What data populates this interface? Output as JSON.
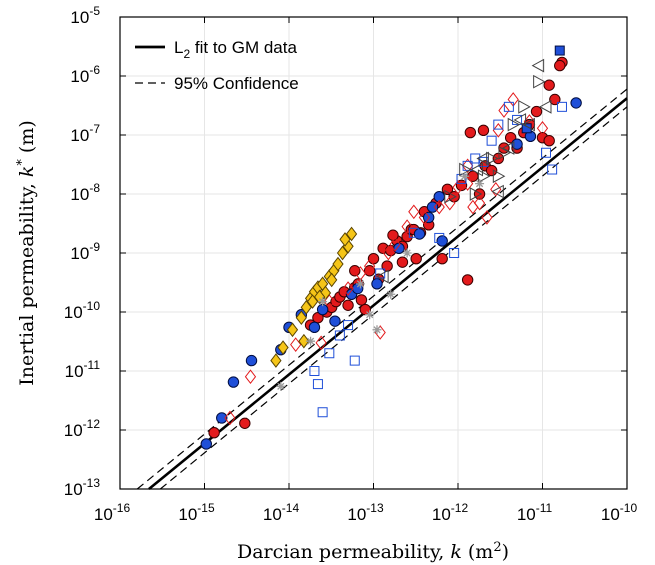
{
  "chart_data": {
    "type": "scatter",
    "xscale": "log",
    "yscale": "log",
    "xlim": [
      1e-16,
      1e-10
    ],
    "ylim": [
      1e-13,
      1e-05
    ],
    "grid": true,
    "legend_position": "top-left",
    "xlabel": "Darcian permeability, k (m²)",
    "ylabel": "Inertial permeability, k* (m)",
    "x_ticks": [
      {
        "value": 1e-16,
        "base": "10",
        "exp": "-16"
      },
      {
        "value": 1e-15,
        "base": "10",
        "exp": "-15"
      },
      {
        "value": 1e-14,
        "base": "10",
        "exp": "-14"
      },
      {
        "value": 1e-13,
        "base": "10",
        "exp": "-13"
      },
      {
        "value": 1e-12,
        "base": "10",
        "exp": "-12"
      },
      {
        "value": 1e-11,
        "base": "10",
        "exp": "-11"
      },
      {
        "value": 1e-10,
        "base": "10",
        "exp": "-10"
      }
    ],
    "y_ticks": [
      {
        "value": 1e-13,
        "base": "10",
        "exp": "-13"
      },
      {
        "value": 1e-12,
        "base": "10",
        "exp": "-12"
      },
      {
        "value": 1e-11,
        "base": "10",
        "exp": "-11"
      },
      {
        "value": 1e-10,
        "base": "10",
        "exp": "-10"
      },
      {
        "value": 1e-09,
        "base": "10",
        "exp": "-9"
      },
      {
        "value": 1e-08,
        "base": "10",
        "exp": "-8"
      },
      {
        "value": 1e-07,
        "base": "10",
        "exp": "-7"
      },
      {
        "value": 1e-06,
        "base": "10",
        "exp": "-6"
      },
      {
        "value": 1e-05,
        "base": "10",
        "exp": "-5"
      }
    ],
    "legend": [
      {
        "label_main": "L",
        "label_sub": "2",
        "label_rest": " fit to GM data",
        "style": "solid"
      },
      {
        "label_main": "95% Confidence",
        "label_sub": "",
        "label_rest": "",
        "style": "dashed"
      }
    ],
    "fit_lines": [
      {
        "style": "solid",
        "x": [
          2.2e-16,
          1e-10
        ],
        "y": [
          1e-13,
          4.2e-07
        ]
      },
      {
        "style": "dashed",
        "x": [
          1.6e-16,
          1e-10
        ],
        "y": [
          1e-13,
          6e-07
        ]
      },
      {
        "style": "dashed",
        "x": [
          3e-16,
          1e-10
        ],
        "y": [
          1e-13,
          3e-07
        ]
      }
    ],
    "series": [
      {
        "marker": "circle",
        "fill": "#e31a1c",
        "stroke": "#3a0000",
        "points": [
          [
            1.3e-15,
            9e-13
          ],
          [
            3e-15,
            1.3e-12
          ],
          [
            1.8e-14,
            6e-11
          ],
          [
            2.2e-14,
            8e-11
          ],
          [
            2.8e-14,
            1e-10
          ],
          [
            3.2e-14,
            1.2e-10
          ],
          [
            3.6e-14,
            1.5e-10
          ],
          [
            4e-14,
            1.8e-10
          ],
          [
            4.5e-14,
            2.2e-10
          ],
          [
            5e-14,
            1.3e-10
          ],
          [
            5.5e-14,
            2e-10
          ],
          [
            6e-14,
            2.6e-10
          ],
          [
            6.6e-14,
            3e-10
          ],
          [
            7.2e-14,
            1.6e-10
          ],
          [
            8e-14,
            1.1e-10
          ],
          [
            9e-14,
            5e-10
          ],
          [
            1e-13,
            8e-10
          ],
          [
            1.15e-13,
            3.6e-10
          ],
          [
            1.3e-13,
            1.2e-09
          ],
          [
            1.45e-13,
            6e-10
          ],
          [
            1.6e-13,
            1.1e-09
          ],
          [
            1.9e-13,
            1.6e-09
          ],
          [
            2.2e-13,
            1.3e-09
          ],
          [
            2.5e-13,
            1.9e-09
          ],
          [
            2.8e-13,
            2.5e-09
          ],
          [
            3.2e-13,
            8e-10
          ],
          [
            3.6e-13,
            2.2e-09
          ],
          [
            4e-13,
            5e-09
          ],
          [
            4.5e-13,
            3e-09
          ],
          [
            5.5e-13,
            7e-09
          ],
          [
            6.5e-13,
            8e-10
          ],
          [
            7.5e-13,
            1.2e-08
          ],
          [
            9e-13,
            9e-09
          ],
          [
            1.1e-12,
            1.4e-08
          ],
          [
            1.3e-12,
            3.5e-10
          ],
          [
            1.5e-12,
            2e-08
          ],
          [
            1.8e-12,
            1e-08
          ],
          [
            2.1e-12,
            3e-08
          ],
          [
            2.5e-12,
            2.5e-08
          ],
          [
            3e-12,
            4e-08
          ],
          [
            3.5e-12,
            6e-08
          ],
          [
            4.2e-12,
            9e-08
          ],
          [
            5e-12,
            6e-08
          ],
          [
            6e-12,
            1.1e-07
          ],
          [
            7e-12,
            1.5e-07
          ],
          [
            8.5e-12,
            2.5e-07
          ],
          [
            1e-11,
            9e-08
          ],
          [
            1.2e-11,
            7e-07
          ],
          [
            1.4e-11,
            4e-07
          ],
          [
            1.7e-11,
            1.7e-06
          ],
          [
            1.6e-11,
            1.5e-06
          ],
          [
            1.2e-11,
            8e-08
          ],
          [
            2e-12,
            1.2e-07
          ],
          [
            1.4e-12,
            1.1e-07
          ],
          [
            2.2e-13,
            7e-10
          ],
          [
            1.7e-13,
            2e-09
          ],
          [
            6e-14,
            5e-10
          ],
          [
            3e-13,
            2.5e-09
          ]
        ]
      },
      {
        "marker": "circle",
        "fill": "#1f4fd8",
        "stroke": "#000d40",
        "points": [
          [
            1.05e-15,
            5.8e-13
          ],
          [
            1.6e-15,
            1.6e-12
          ],
          [
            2.2e-15,
            6.5e-12
          ],
          [
            3.6e-15,
            1.5e-11
          ],
          [
            8e-15,
            2.3e-11
          ],
          [
            1e-14,
            5.5e-11
          ],
          [
            1.4e-14,
            9e-11
          ],
          [
            2e-14,
            5.5e-11
          ],
          [
            2.5e-14,
            1.1e-10
          ],
          [
            3.5e-14,
            7e-11
          ],
          [
            5.5e-14,
            2e-10
          ],
          [
            6.5e-14,
            2.5e-10
          ],
          [
            1.1e-13,
            3e-10
          ],
          [
            2e-13,
            1.2e-09
          ],
          [
            3.5e-13,
            2.1e-09
          ],
          [
            4.5e-13,
            4e-09
          ],
          [
            5e-13,
            6e-09
          ],
          [
            6e-13,
            9e-09
          ],
          [
            5e-12,
            7e-08
          ],
          [
            7.2e-12,
            9.5e-08
          ],
          [
            2.5e-11,
            3.5e-07
          ],
          [
            6.5e-13,
            1.6e-09
          ]
        ]
      },
      {
        "marker": "diamond",
        "fill": "none",
        "stroke": "#e31a1c",
        "points": [
          [
            2e-15,
            1.6e-12
          ],
          [
            3.5e-15,
            8e-12
          ],
          [
            1.2e-14,
            2.8e-11
          ],
          [
            2.4e-14,
            3e-11
          ],
          [
            3e-14,
            1.5e-10
          ],
          [
            5e-14,
            2.5e-10
          ],
          [
            7e-14,
            4.5e-10
          ],
          [
            9e-14,
            6e-10
          ],
          [
            1.2e-13,
            4.5e-11
          ],
          [
            1.5e-13,
            1e-09
          ],
          [
            1.8e-13,
            1.4e-09
          ],
          [
            2.5e-13,
            2.8e-09
          ],
          [
            3e-13,
            5e-09
          ],
          [
            4e-13,
            4e-09
          ],
          [
            6e-13,
            6e-09
          ],
          [
            8e-13,
            7e-09
          ],
          [
            1e-12,
            1.3e-08
          ],
          [
            1.3e-12,
            1.5e-08
          ],
          [
            1.5e-12,
            6e-09
          ],
          [
            1.8e-12,
            7e-09
          ],
          [
            2.2e-12,
            4e-09
          ],
          [
            2.8e-12,
            1.2e-08
          ],
          [
            3e-12,
            1.2e-07
          ],
          [
            3.5e-12,
            2.6e-07
          ],
          [
            4.5e-12,
            4e-07
          ],
          [
            7e-12,
            1.7e-07
          ],
          [
            1e-11,
            1.3e-07
          ],
          [
            1.3e-12,
            3e-08
          ]
        ]
      },
      {
        "marker": "diamond",
        "fill": "#f5c518",
        "stroke": "#5a4500",
        "points": [
          [
            7e-15,
            1.5e-11
          ],
          [
            8.5e-15,
            2.5e-11
          ],
          [
            1.1e-14,
            5e-11
          ],
          [
            1.4e-14,
            8e-11
          ],
          [
            1.6e-14,
            1.2e-10
          ],
          [
            1.8e-14,
            1.7e-10
          ],
          [
            2e-14,
            2.2e-10
          ],
          [
            2.2e-14,
            2.6e-10
          ],
          [
            2.5e-14,
            3e-10
          ],
          [
            2.7e-14,
            2.1e-10
          ],
          [
            3e-14,
            4e-10
          ],
          [
            3.4e-14,
            5e-10
          ],
          [
            3.8e-14,
            6.5e-10
          ],
          [
            4.3e-14,
            1e-09
          ],
          [
            5e-14,
            1.3e-09
          ],
          [
            5.5e-14,
            2.1e-09
          ],
          [
            4.6e-14,
            1.7e-09
          ],
          [
            1.5e-14,
            3.2e-11
          ],
          [
            1.9e-14,
            1.5e-10
          ],
          [
            2.3e-14,
            1.8e-10
          ],
          [
            3.2e-14,
            3.5e-10
          ]
        ]
      },
      {
        "marker": "square",
        "fill": "none",
        "stroke": "#1f4fd8",
        "points": [
          [
            2e-14,
            1e-11
          ],
          [
            2.2e-14,
            6e-12
          ],
          [
            2.5e-14,
            2e-12
          ],
          [
            3e-14,
            2e-11
          ],
          [
            4e-14,
            4e-11
          ],
          [
            5e-14,
            6e-11
          ],
          [
            6e-14,
            1.5e-11
          ],
          [
            1.2e-13,
            4.5e-10
          ],
          [
            3e-13,
            2.2e-09
          ],
          [
            6e-13,
            1.8e-09
          ],
          [
            9e-13,
            1e-09
          ],
          [
            1.1e-12,
            1.8e-08
          ],
          [
            1.3e-12,
            3e-08
          ],
          [
            1.6e-12,
            4e-08
          ],
          [
            2e-12,
            3.5e-08
          ],
          [
            2.5e-12,
            8e-08
          ],
          [
            3e-12,
            1.5e-07
          ],
          [
            4e-12,
            3e-07
          ],
          [
            5e-12,
            1.8e-07
          ],
          [
            1.1e-11,
            5e-08
          ],
          [
            1.3e-11,
            2.6e-08
          ],
          [
            1.7e-11,
            3e-07
          ]
        ]
      },
      {
        "marker": "square",
        "fill": "#1f4fd8",
        "stroke": "#000d40",
        "points": [
          [
            6.5e-12,
            1.3e-07
          ],
          [
            1.6e-11,
            2.7e-06
          ]
        ]
      },
      {
        "marker": "tri-right",
        "fill": "none",
        "stroke": "#444444",
        "points": [
          [
            2e-12,
            2e-08
          ],
          [
            2.5e-12,
            4e-08
          ],
          [
            3e-12,
            2e-08
          ],
          [
            3.5e-12,
            5e-08
          ],
          [
            4.5e-12,
            1.5e-07
          ],
          [
            6e-12,
            3e-07
          ],
          [
            9e-12,
            8e-07
          ],
          [
            1.6e-12,
            1e-08
          ],
          [
            8e-13,
            9e-09
          ],
          [
            1.2e-12,
            2.6e-08
          ]
        ]
      },
      {
        "marker": "tri-left",
        "fill": "none",
        "stroke": "#444444",
        "points": [
          [
            3e-12,
            1.1e-08
          ],
          [
            4e-12,
            6e-08
          ],
          [
            5.5e-12,
            1.8e-07
          ],
          [
            7e-12,
            1.5e-07
          ],
          [
            9e-12,
            1.5e-06
          ],
          [
            1.1e-11,
            3e-07
          ],
          [
            1.3e-13,
            4e-10
          ],
          [
            2e-12,
            4e-08
          ],
          [
            1.7e-12,
            2.6e-08
          ]
        ]
      },
      {
        "marker": "star",
        "fill": "none",
        "stroke": "#9a9a9a",
        "points": [
          [
            8e-15,
            5.5e-12
          ],
          [
            1.8e-14,
            3.2e-11
          ],
          [
            2.5e-14,
            1.5e-10
          ],
          [
            7e-14,
            3e-10
          ],
          [
            9e-14,
            9e-11
          ],
          [
            1.1e-13,
            5e-11
          ],
          [
            1.6e-13,
            2e-10
          ],
          [
            2.5e-13,
            1e-09
          ],
          [
            1.8e-12,
            1.5e-08
          ],
          [
            1.2e-12,
            2e-08
          ]
        ]
      }
    ]
  }
}
